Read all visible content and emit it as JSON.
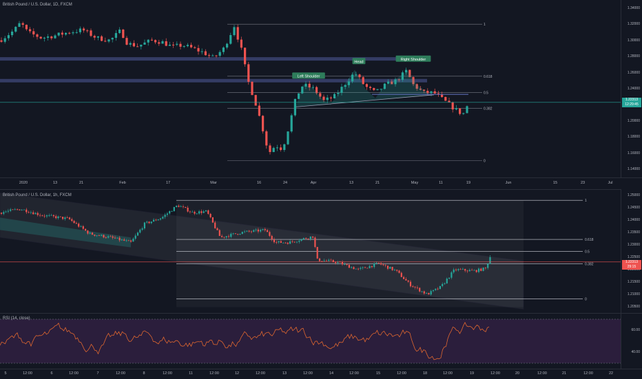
{
  "colors": {
    "bg": "#131722",
    "up": "#26a69a",
    "down": "#ef5350",
    "grid": "#2a2e39",
    "text": "#b2b5be",
    "zone": "#5d6bb5",
    "channel": "#9c7bd6",
    "rsiLine": "#e0672f",
    "rsiBand": "#2b1e3c",
    "priceLine": "#26a69a",
    "priceLine2": "#ef5350"
  },
  "top": {
    "title": "British Pound / U.S. Dollar, 1D, FXCM",
    "yTicks": [
      "1.34000",
      "1.32000",
      "1.30000",
      "1.28000",
      "1.26000",
      "1.24000",
      "1.22000",
      "1.20000",
      "1.18000",
      "1.16000",
      "1.14000"
    ],
    "yRange": [
      1.13,
      1.35
    ],
    "priceLabel": "1.22313",
    "timerLabel": "12:29:45",
    "xTicks": [
      "2020",
      "13",
      "21",
      "Feb",
      "17",
      "Mar",
      "16",
      "24",
      "Apr",
      "13",
      "21",
      "May",
      "11",
      "19",
      "Jun",
      "15",
      "23",
      "Jul"
    ],
    "patternLabels": [
      "Left Shoulder",
      "Head",
      "Right Shoulder"
    ],
    "fib": [
      {
        "label": "1",
        "value": 1.32
      },
      {
        "label": "0.618",
        "value": 1.2555
      },
      {
        "label": "0.5",
        "value": 1.2355
      },
      {
        "label": "0.382",
        "value": 1.2155
      },
      {
        "label": "0",
        "value": 1.151
      }
    ],
    "zones": [
      1.277,
      1.25
    ],
    "neckline": [
      1.2175,
      1.2325
    ],
    "currentPrice": 1.2231
  },
  "bottom": {
    "title": "British Pound / U.S. Dollar, 1h, FXCM",
    "yTicks": [
      "1.25000",
      "1.24500",
      "1.24000",
      "1.23500",
      "1.23000",
      "1.22500",
      "1.22000",
      "1.21500",
      "1.21000",
      "1.20500"
    ],
    "yRange": [
      1.2025,
      1.2525
    ],
    "priceLabel": "1.22313",
    "timerLabel": "29:15",
    "fib": [
      {
        "label": "1",
        "value": 1.248
      },
      {
        "label": "0.618",
        "value": 1.2322
      },
      {
        "label": "0.5",
        "value": 1.2273
      },
      {
        "label": "0.382",
        "value": 1.2224
      },
      {
        "label": "0",
        "value": 1.2082
      }
    ],
    "currentPrice": 1.2231
  },
  "rsi": {
    "title": "RSI (14, close)",
    "yTicks": [
      "60.00",
      "40.00"
    ],
    "xTicks": [
      "5",
      "12:00",
      "6",
      "12:00",
      "7",
      "12:00",
      "8",
      "12:00",
      "11",
      "12:00",
      "12",
      "12:00",
      "13",
      "12:00",
      "14",
      "12:00",
      "15",
      "12:00",
      "18",
      "12:00",
      "19",
      "12:00",
      "20",
      "12:00",
      "21",
      "12:00",
      "22"
    ]
  },
  "chart_data": [
    {
      "type": "candlestick",
      "title": "British Pound / U.S. Dollar, 1D, FXCM",
      "ylim": [
        1.13,
        1.35
      ],
      "annotations": [
        "Left Shoulder",
        "Head",
        "Right Shoulder"
      ],
      "fib_levels": {
        "1": 1.32,
        "0.618": 1.2555,
        "0.5": 1.2355,
        "0.382": 1.2155,
        "0": 1.151
      },
      "last_price": 1.22313
    },
    {
      "type": "candlestick",
      "title": "British Pound / U.S. Dollar, 1h, FXCM",
      "ylim": [
        1.2025,
        1.2525
      ],
      "fib_levels": {
        "1": 1.248,
        "0.618": 1.2322,
        "0.5": 1.2273,
        "0.382": 1.2224,
        "0": 1.2082
      },
      "last_price": 1.22313
    },
    {
      "type": "line",
      "title": "RSI (14, close)",
      "ylim": [
        25,
        75
      ],
      "bands": [
        70,
        30
      ]
    }
  ]
}
